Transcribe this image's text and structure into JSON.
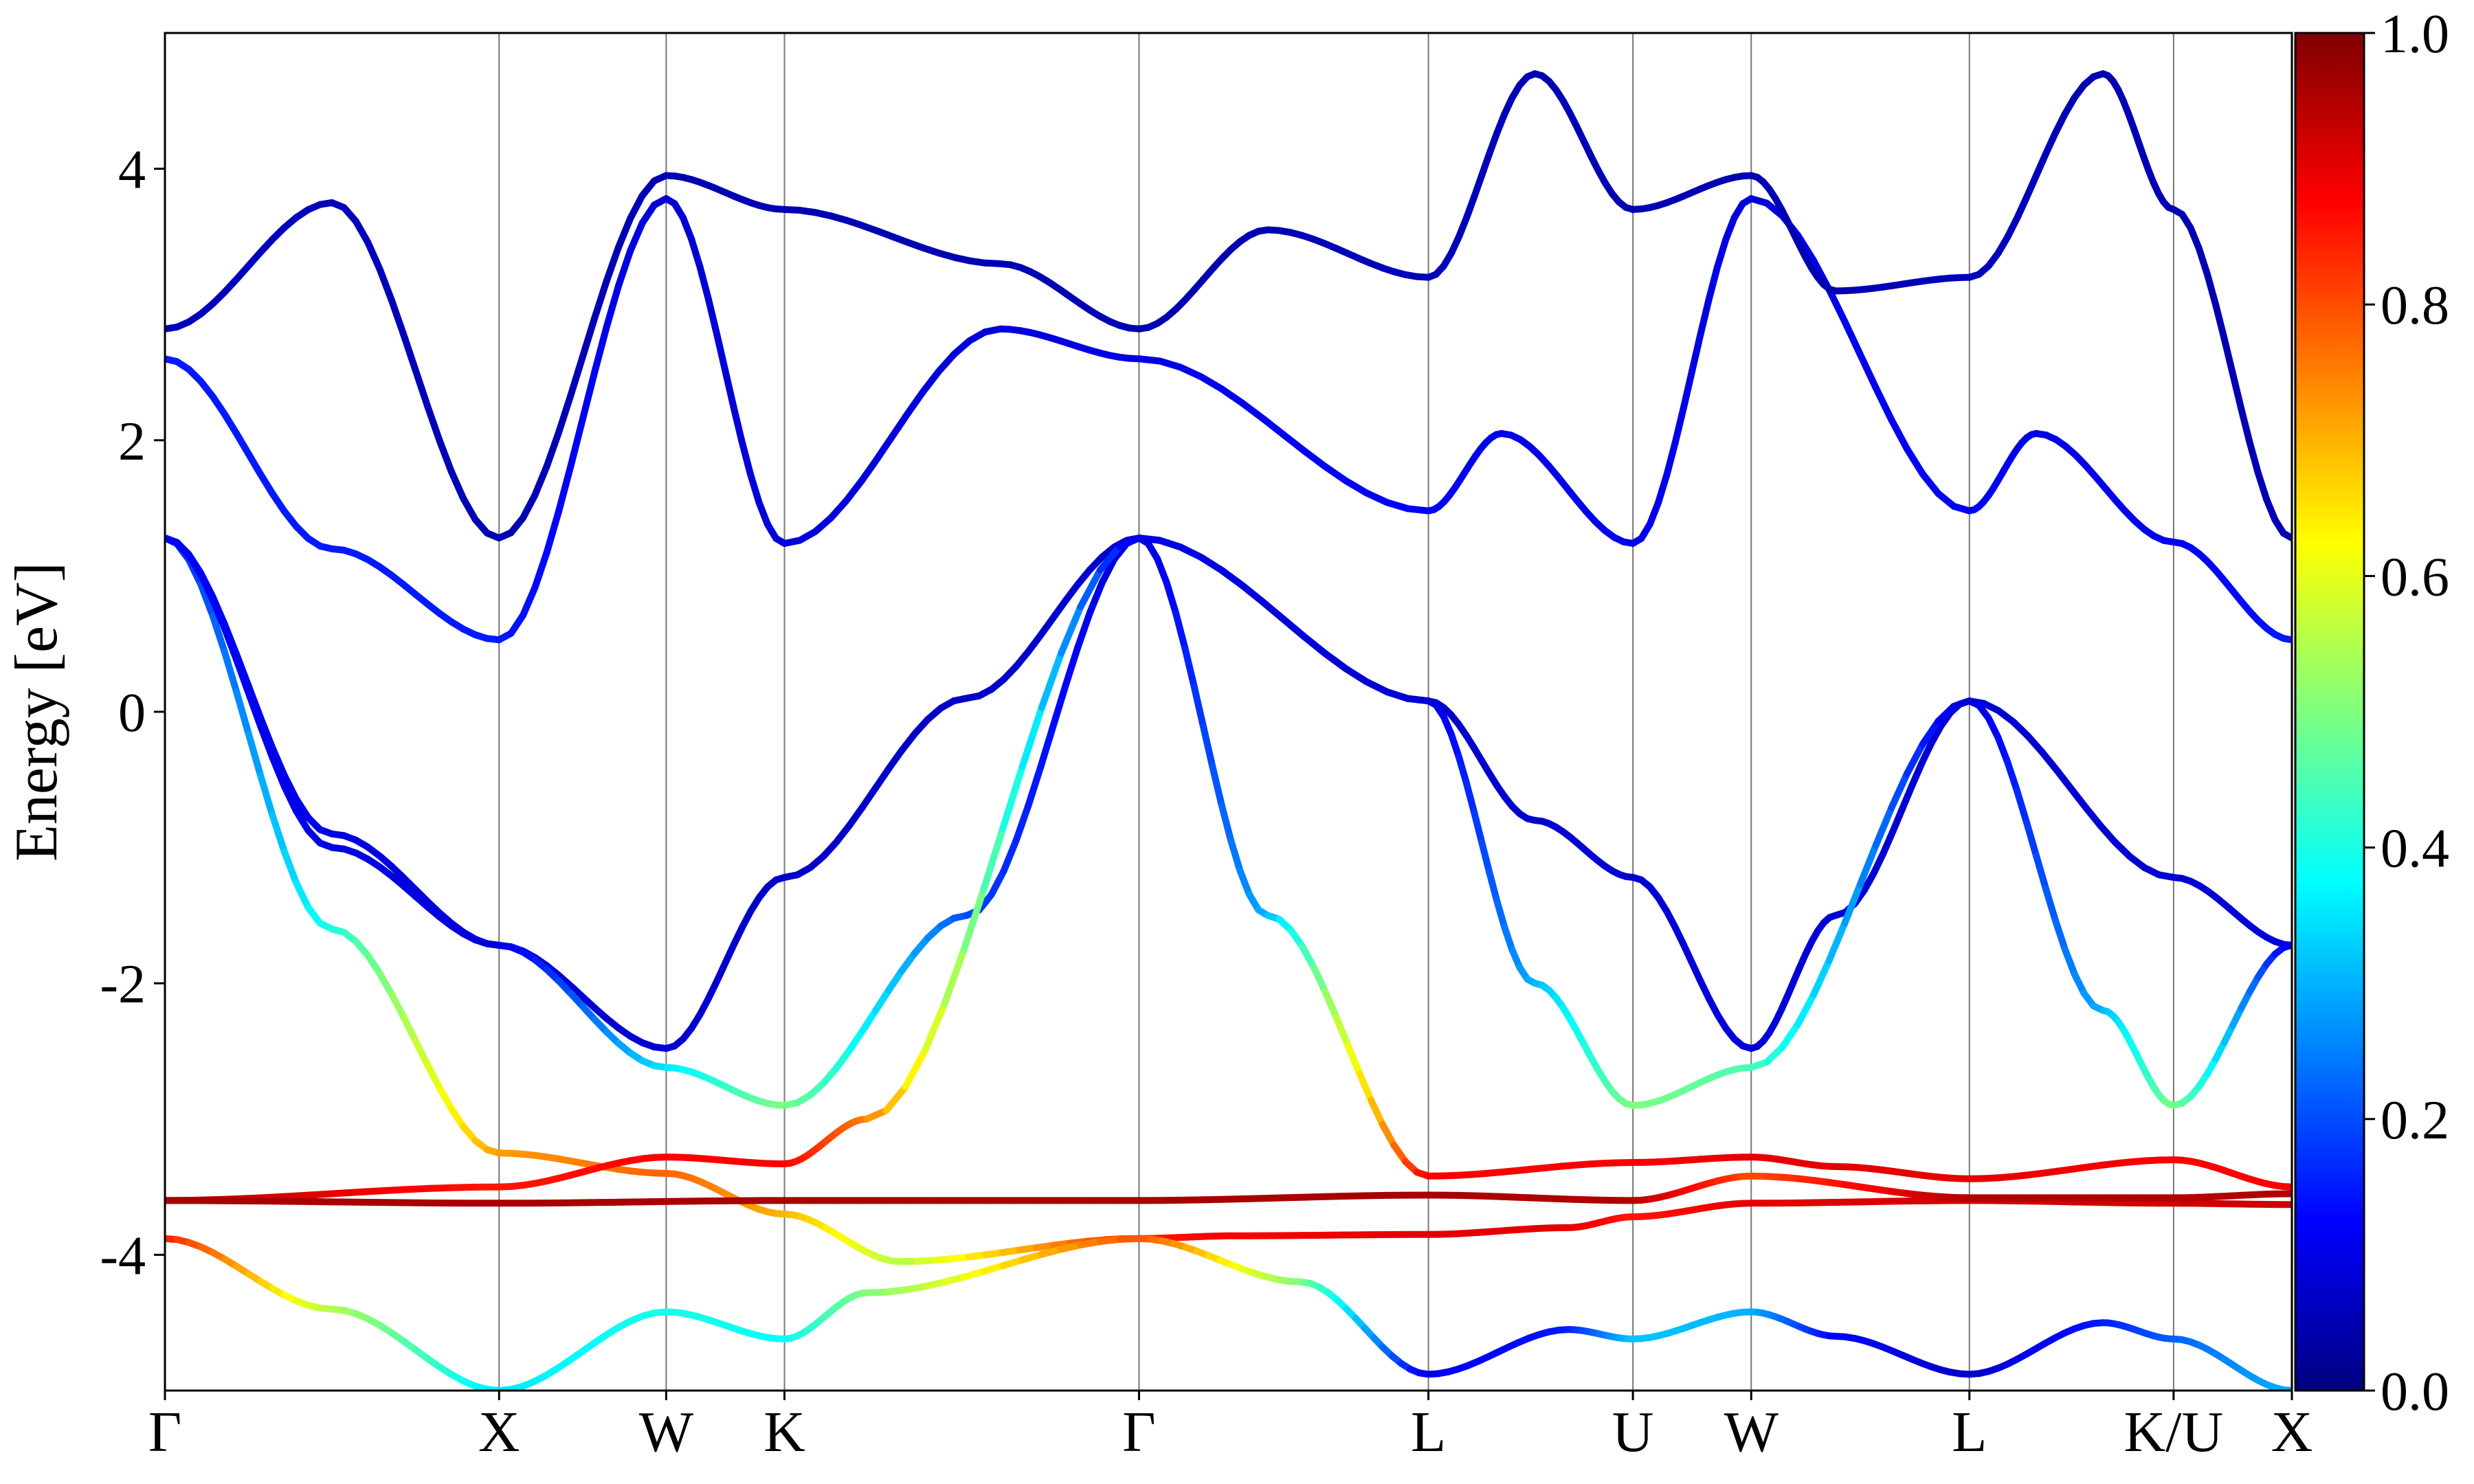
{
  "chart_data": {
    "type": "line",
    "title": "",
    "xlabel": "",
    "ylabel": "Energy [eV]",
    "ylim": [
      -5,
      5
    ],
    "yticks": [
      -4,
      -2,
      0,
      2,
      4
    ],
    "yticklabels": [
      "-4",
      "-2",
      "0",
      "2",
      "4"
    ],
    "kpath": {
      "labels": [
        "Γ",
        "X",
        "W",
        "K",
        "Γ",
        "L",
        "U",
        "W",
        "L",
        "K/U",
        "X"
      ],
      "positions": [
        0,
        1,
        1.5,
        1.854,
        2.915,
        3.781,
        4.393,
        4.747,
        5.4,
        6.011,
        6.365
      ]
    },
    "grid": "vertical lines at high-symmetry points",
    "colorbar": {
      "label": "",
      "range": [
        0,
        1
      ],
      "ticks": [
        "0.0",
        "0.2",
        "0.4",
        "0.6",
        "0.8",
        "1.0"
      ],
      "colormap": "jet",
      "stops": [
        "#00007f",
        "#0000ff",
        "#007fff",
        "#00ffff",
        "#7fff7f",
        "#ffff00",
        "#ff7f00",
        "#ff0000",
        "#7f0000"
      ]
    },
    "series": [
      {
        "points": [
          [
            0,
            1.28,
            0.14
          ],
          [
            0.5,
            -1.6,
            0.4
          ],
          [
            1,
            -3.25,
            0.72
          ],
          [
            1.5,
            -3.4,
            0.78
          ],
          [
            1.854,
            -3.7,
            0.7
          ],
          [
            2.2,
            -4.05,
            0.55
          ],
          [
            2.915,
            -3.88,
            0.85
          ],
          [
            3.2,
            -3.86,
            0.88
          ],
          [
            3.781,
            -3.85,
            0.9
          ],
          [
            4.2,
            -3.8,
            0.9
          ],
          [
            4.393,
            -3.72,
            0.85
          ],
          [
            4.747,
            -3.62,
            0.9
          ],
          [
            5.4,
            -3.6,
            0.92
          ],
          [
            6.011,
            -3.62,
            0.92
          ],
          [
            6.365,
            -3.63,
            0.92
          ]
        ]
      },
      {
        "points": [
          [
            0,
            1.28,
            0.12
          ],
          [
            0.5,
            -0.9,
            0.1
          ],
          [
            1,
            -1.72,
            0.08
          ],
          [
            1.5,
            -2.48,
            0.08
          ],
          [
            1.854,
            -1.22,
            0.07
          ],
          [
            2.4,
            0.1,
            0.07
          ],
          [
            2.915,
            1.28,
            0.08
          ],
          [
            3.781,
            0.08,
            0.07
          ],
          [
            4.1,
            -0.8,
            0.08
          ],
          [
            4.393,
            -1.22,
            0.08
          ],
          [
            4.747,
            -2.48,
            0.09
          ],
          [
            5.0,
            -1.5,
            0.08
          ],
          [
            5.4,
            0.08,
            0.08
          ],
          [
            6.011,
            -1.22,
            0.08
          ],
          [
            6.365,
            -1.72,
            0.09
          ]
        ]
      },
      {
        "points": [
          [
            0,
            1.28,
            0.12
          ],
          [
            0.5,
            -1.0,
            0.1
          ],
          [
            1,
            -1.72,
            0.09
          ],
          [
            1.5,
            -2.62,
            0.35
          ],
          [
            1.854,
            -2.9,
            0.5
          ],
          [
            2.4,
            -1.5,
            0.2
          ],
          [
            2.915,
            1.28,
            0.07
          ],
          [
            3.3,
            -1.5,
            0.3
          ],
          [
            3.781,
            -3.42,
            0.88
          ],
          [
            4.393,
            -3.32,
            0.88
          ],
          [
            4.747,
            -3.28,
            0.9
          ],
          [
            5.0,
            -3.35,
            0.9
          ],
          [
            5.4,
            -3.44,
            0.9
          ],
          [
            6.011,
            -3.3,
            0.88
          ],
          [
            6.365,
            -3.5,
            0.88
          ]
        ]
      },
      {
        "points": [
          [
            0,
            -3.6,
            0.95
          ],
          [
            1,
            -3.5,
            0.85
          ],
          [
            1.5,
            -3.28,
            0.88
          ],
          [
            1.854,
            -3.33,
            0.88
          ],
          [
            2.1,
            -3.0,
            0.75
          ],
          [
            2.915,
            1.28,
            0.1
          ],
          [
            3.781,
            0.08,
            0.08
          ],
          [
            4.1,
            -2.0,
            0.3
          ],
          [
            4.393,
            -2.9,
            0.5
          ],
          [
            4.747,
            -2.62,
            0.45
          ],
          [
            5.4,
            0.08,
            0.08
          ],
          [
            5.8,
            -2.2,
            0.3
          ],
          [
            6.011,
            -2.9,
            0.5
          ],
          [
            6.365,
            -1.72,
            0.1
          ]
        ]
      },
      {
        "points": [
          [
            0,
            -3.88,
            0.85
          ],
          [
            0.5,
            -4.4,
            0.55
          ],
          [
            1,
            -5.0,
            0.35
          ],
          [
            1.5,
            -4.42,
            0.4
          ],
          [
            1.854,
            -4.62,
            0.38
          ],
          [
            2.1,
            -4.28,
            0.5
          ],
          [
            2.915,
            -3.88,
            0.8
          ],
          [
            3.4,
            -4.2,
            0.5
          ],
          [
            3.781,
            -4.88,
            0.1
          ],
          [
            4.2,
            -4.55,
            0.15
          ],
          [
            4.393,
            -4.62,
            0.32
          ],
          [
            4.747,
            -4.42,
            0.3
          ],
          [
            5.0,
            -4.6,
            0.12
          ],
          [
            5.4,
            -4.88,
            0.07
          ],
          [
            5.8,
            -4.5,
            0.15
          ],
          [
            6.011,
            -4.62,
            0.22
          ],
          [
            6.365,
            -5.0,
            0.3
          ]
        ]
      },
      {
        "points": [
          [
            0,
            -3.6,
            0.96
          ],
          [
            1,
            -3.62,
            0.96
          ],
          [
            1.854,
            -3.6,
            0.96
          ],
          [
            2.915,
            -3.6,
            0.96
          ],
          [
            3.781,
            -3.56,
            0.96
          ],
          [
            4.393,
            -3.6,
            0.95
          ],
          [
            4.747,
            -3.42,
            0.8
          ],
          [
            5.4,
            -3.58,
            0.95
          ],
          [
            6.011,
            -3.58,
            0.95
          ],
          [
            6.365,
            -3.55,
            0.95
          ]
        ]
      },
      {
        "points": [
          [
            0,
            2.6,
            0.15
          ],
          [
            0.5,
            1.2,
            0.15
          ],
          [
            1,
            0.53,
            0.15
          ],
          [
            1.5,
            3.78,
            0.08
          ],
          [
            1.854,
            1.24,
            0.09
          ],
          [
            2.5,
            2.82,
            0.09
          ],
          [
            2.915,
            2.6,
            0.1
          ],
          [
            3.781,
            1.48,
            0.12
          ],
          [
            4.0,
            2.05,
            0.1
          ],
          [
            4.393,
            1.24,
            0.11
          ],
          [
            4.747,
            3.78,
            0.09
          ],
          [
            5.4,
            1.48,
            0.12
          ],
          [
            5.6,
            2.05,
            0.1
          ],
          [
            6.011,
            1.25,
            0.11
          ],
          [
            6.365,
            0.53,
            0.15
          ]
        ]
      },
      {
        "points": [
          [
            0,
            2.82,
            0.06
          ],
          [
            0.5,
            3.75,
            0.06
          ],
          [
            1,
            1.28,
            0.05
          ],
          [
            1.5,
            3.95,
            0.05
          ],
          [
            1.854,
            3.7,
            0.05
          ],
          [
            2.5,
            3.3,
            0.05
          ],
          [
            2.915,
            2.82,
            0.05
          ],
          [
            3.3,
            3.55,
            0.05
          ],
          [
            3.781,
            3.2,
            0.06
          ],
          [
            4.1,
            4.7,
            0.05
          ],
          [
            4.393,
            3.7,
            0.05
          ],
          [
            4.747,
            3.95,
            0.05
          ],
          [
            5.0,
            3.1,
            0.05
          ],
          [
            5.4,
            3.2,
            0.06
          ],
          [
            5.8,
            4.7,
            0.05
          ],
          [
            6.011,
            3.7,
            0.05
          ],
          [
            6.365,
            1.28,
            0.05
          ]
        ]
      }
    ]
  }
}
